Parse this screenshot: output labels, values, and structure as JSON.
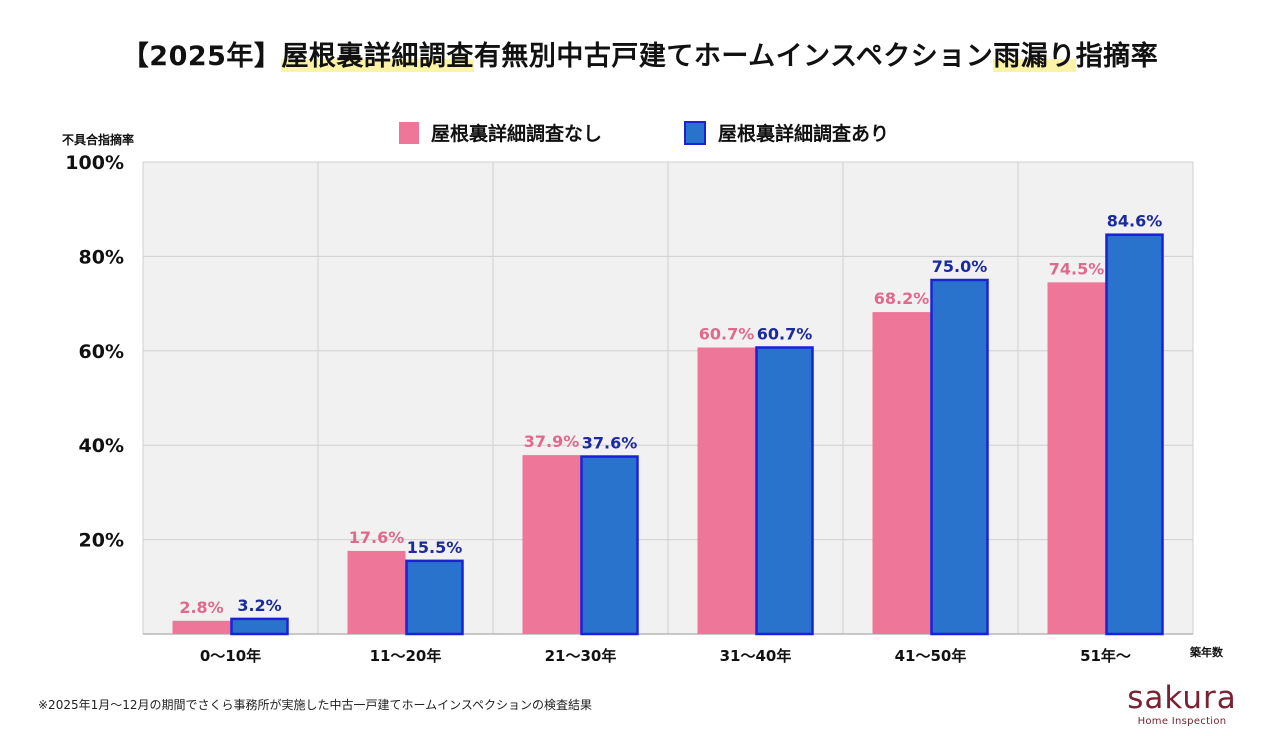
{
  "title": {
    "prefix": "【2025年】",
    "highlight1": "屋根裏詳細調査",
    "middle": "有無別中古戸建てホームインスペクション",
    "highlight2": "雨漏り",
    "suffix": "指摘率"
  },
  "footnote": "※2025年1月～12月の期間でさくら事務所が実施した中古一戸建てホームインスペクションの検査結果",
  "logo": {
    "word": "sakura",
    "sub": "Home Inspection"
  },
  "colors": {
    "series_without": "#ee7699",
    "series_without_label": "#e06a8e",
    "series_with": "#2a73cc",
    "series_with_stroke": "#1a22d6",
    "series_with_label": "#1b2a9c",
    "plot_bg": "#f1f1f1",
    "grid": "#d0d0d0"
  },
  "chart_data": {
    "type": "bar",
    "ylabel": "不具合指摘率",
    "xlabel": "築年数",
    "ylim": [
      0,
      100
    ],
    "y_ticks": [
      "20%",
      "40%",
      "60%",
      "80%",
      "100%"
    ],
    "y_tick_values": [
      20,
      40,
      60,
      80,
      100
    ],
    "categories": [
      "0～10年",
      "11～20年",
      "21～30年",
      "31～40年",
      "41～50年",
      "51年～"
    ],
    "series": [
      {
        "name": "屋根裏詳細調査なし",
        "values": [
          2.8,
          17.6,
          37.9,
          60.7,
          68.2,
          74.5
        ],
        "labels": [
          "2.8%",
          "17.6%",
          "37.9%",
          "60.7%",
          "68.2%",
          "74.5%"
        ]
      },
      {
        "name": "屋根裏詳細調査あり",
        "values": [
          3.2,
          15.5,
          37.6,
          60.7,
          75.0,
          84.6
        ],
        "labels": [
          "3.2%",
          "15.5%",
          "37.6%",
          "60.7%",
          "75.0%",
          "84.6%"
        ]
      }
    ],
    "grid": true,
    "legend_position": "top-center"
  }
}
